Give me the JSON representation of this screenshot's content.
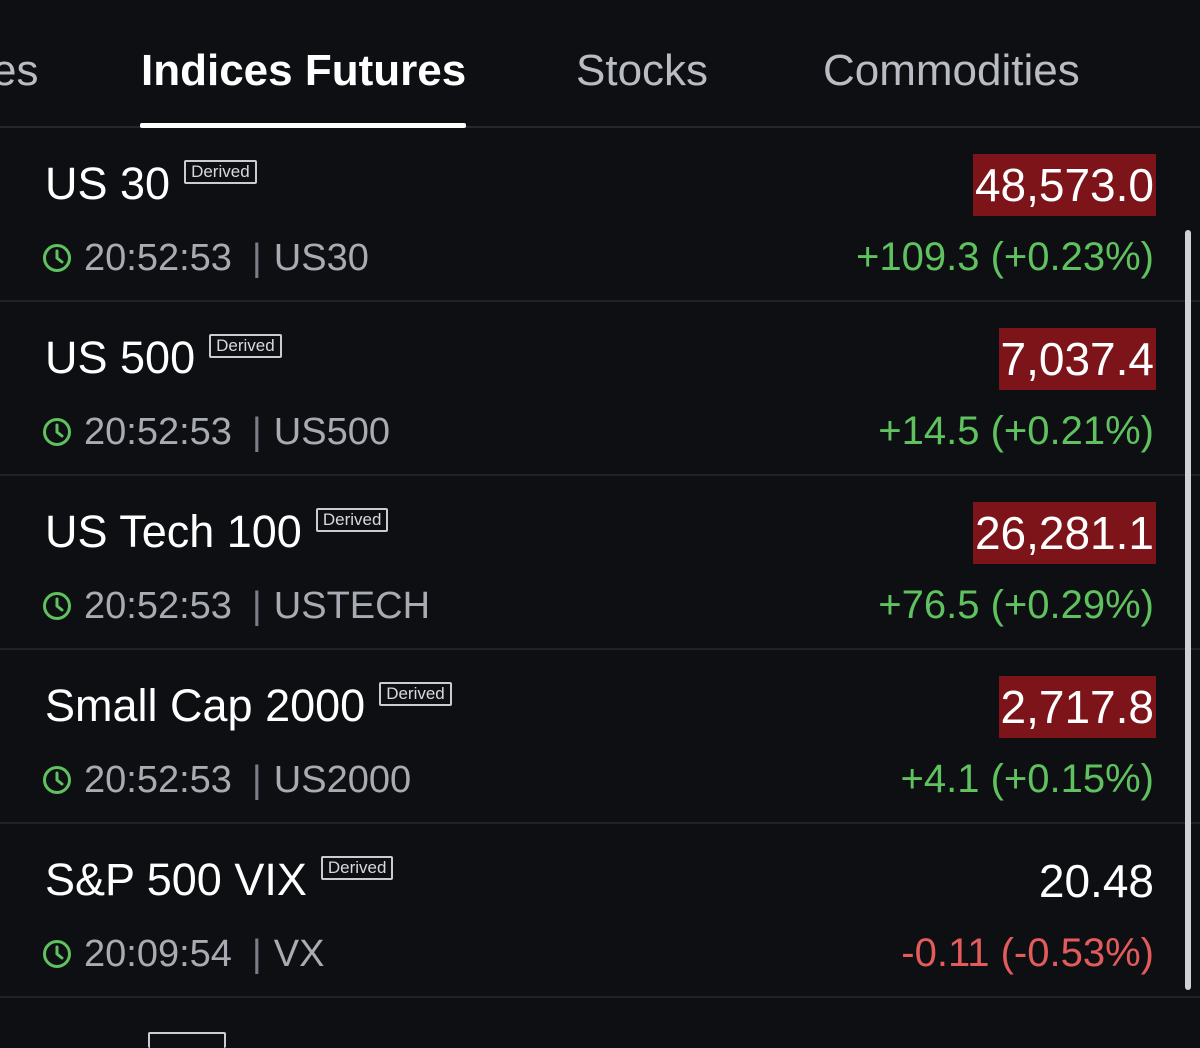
{
  "tabs": [
    {
      "label": "es",
      "active": false
    },
    {
      "label": "Indices Futures",
      "active": true
    },
    {
      "label": "Stocks",
      "active": false
    },
    {
      "label": "Commodities",
      "active": false
    }
  ],
  "badge_label": "Derived",
  "instruments": [
    {
      "name": "US 30",
      "time": "20:52:53",
      "symbol": "US30",
      "price": "48,573.0",
      "change": "+109.3 (+0.23%)",
      "direction": "up",
      "price_flash": true
    },
    {
      "name": "US 500",
      "time": "20:52:53",
      "symbol": "US500",
      "price": "7,037.4",
      "change": "+14.5 (+0.21%)",
      "direction": "up",
      "price_flash": true
    },
    {
      "name": "US Tech 100",
      "time": "20:52:53",
      "symbol": "USTECH",
      "price": "26,281.1",
      "change": "+76.5 (+0.29%)",
      "direction": "up",
      "price_flash": true
    },
    {
      "name": "Small Cap 2000",
      "time": "20:52:53",
      "symbol": "US2000",
      "price": "2,717.8",
      "change": "+4.1 (+0.15%)",
      "direction": "up",
      "price_flash": true
    },
    {
      "name": "S&P 500 VIX",
      "time": "20:09:54",
      "symbol": "VX",
      "price": "20.48",
      "change": "-0.11 (-0.53%)",
      "direction": "down",
      "price_flash": false
    }
  ],
  "separator": "|",
  "colors": {
    "background": "#0d0f13",
    "up": "#5fc25f",
    "down": "#e45b5b",
    "price_flash_bg": "#7d1419"
  },
  "icons": {
    "time": "clock-icon"
  }
}
